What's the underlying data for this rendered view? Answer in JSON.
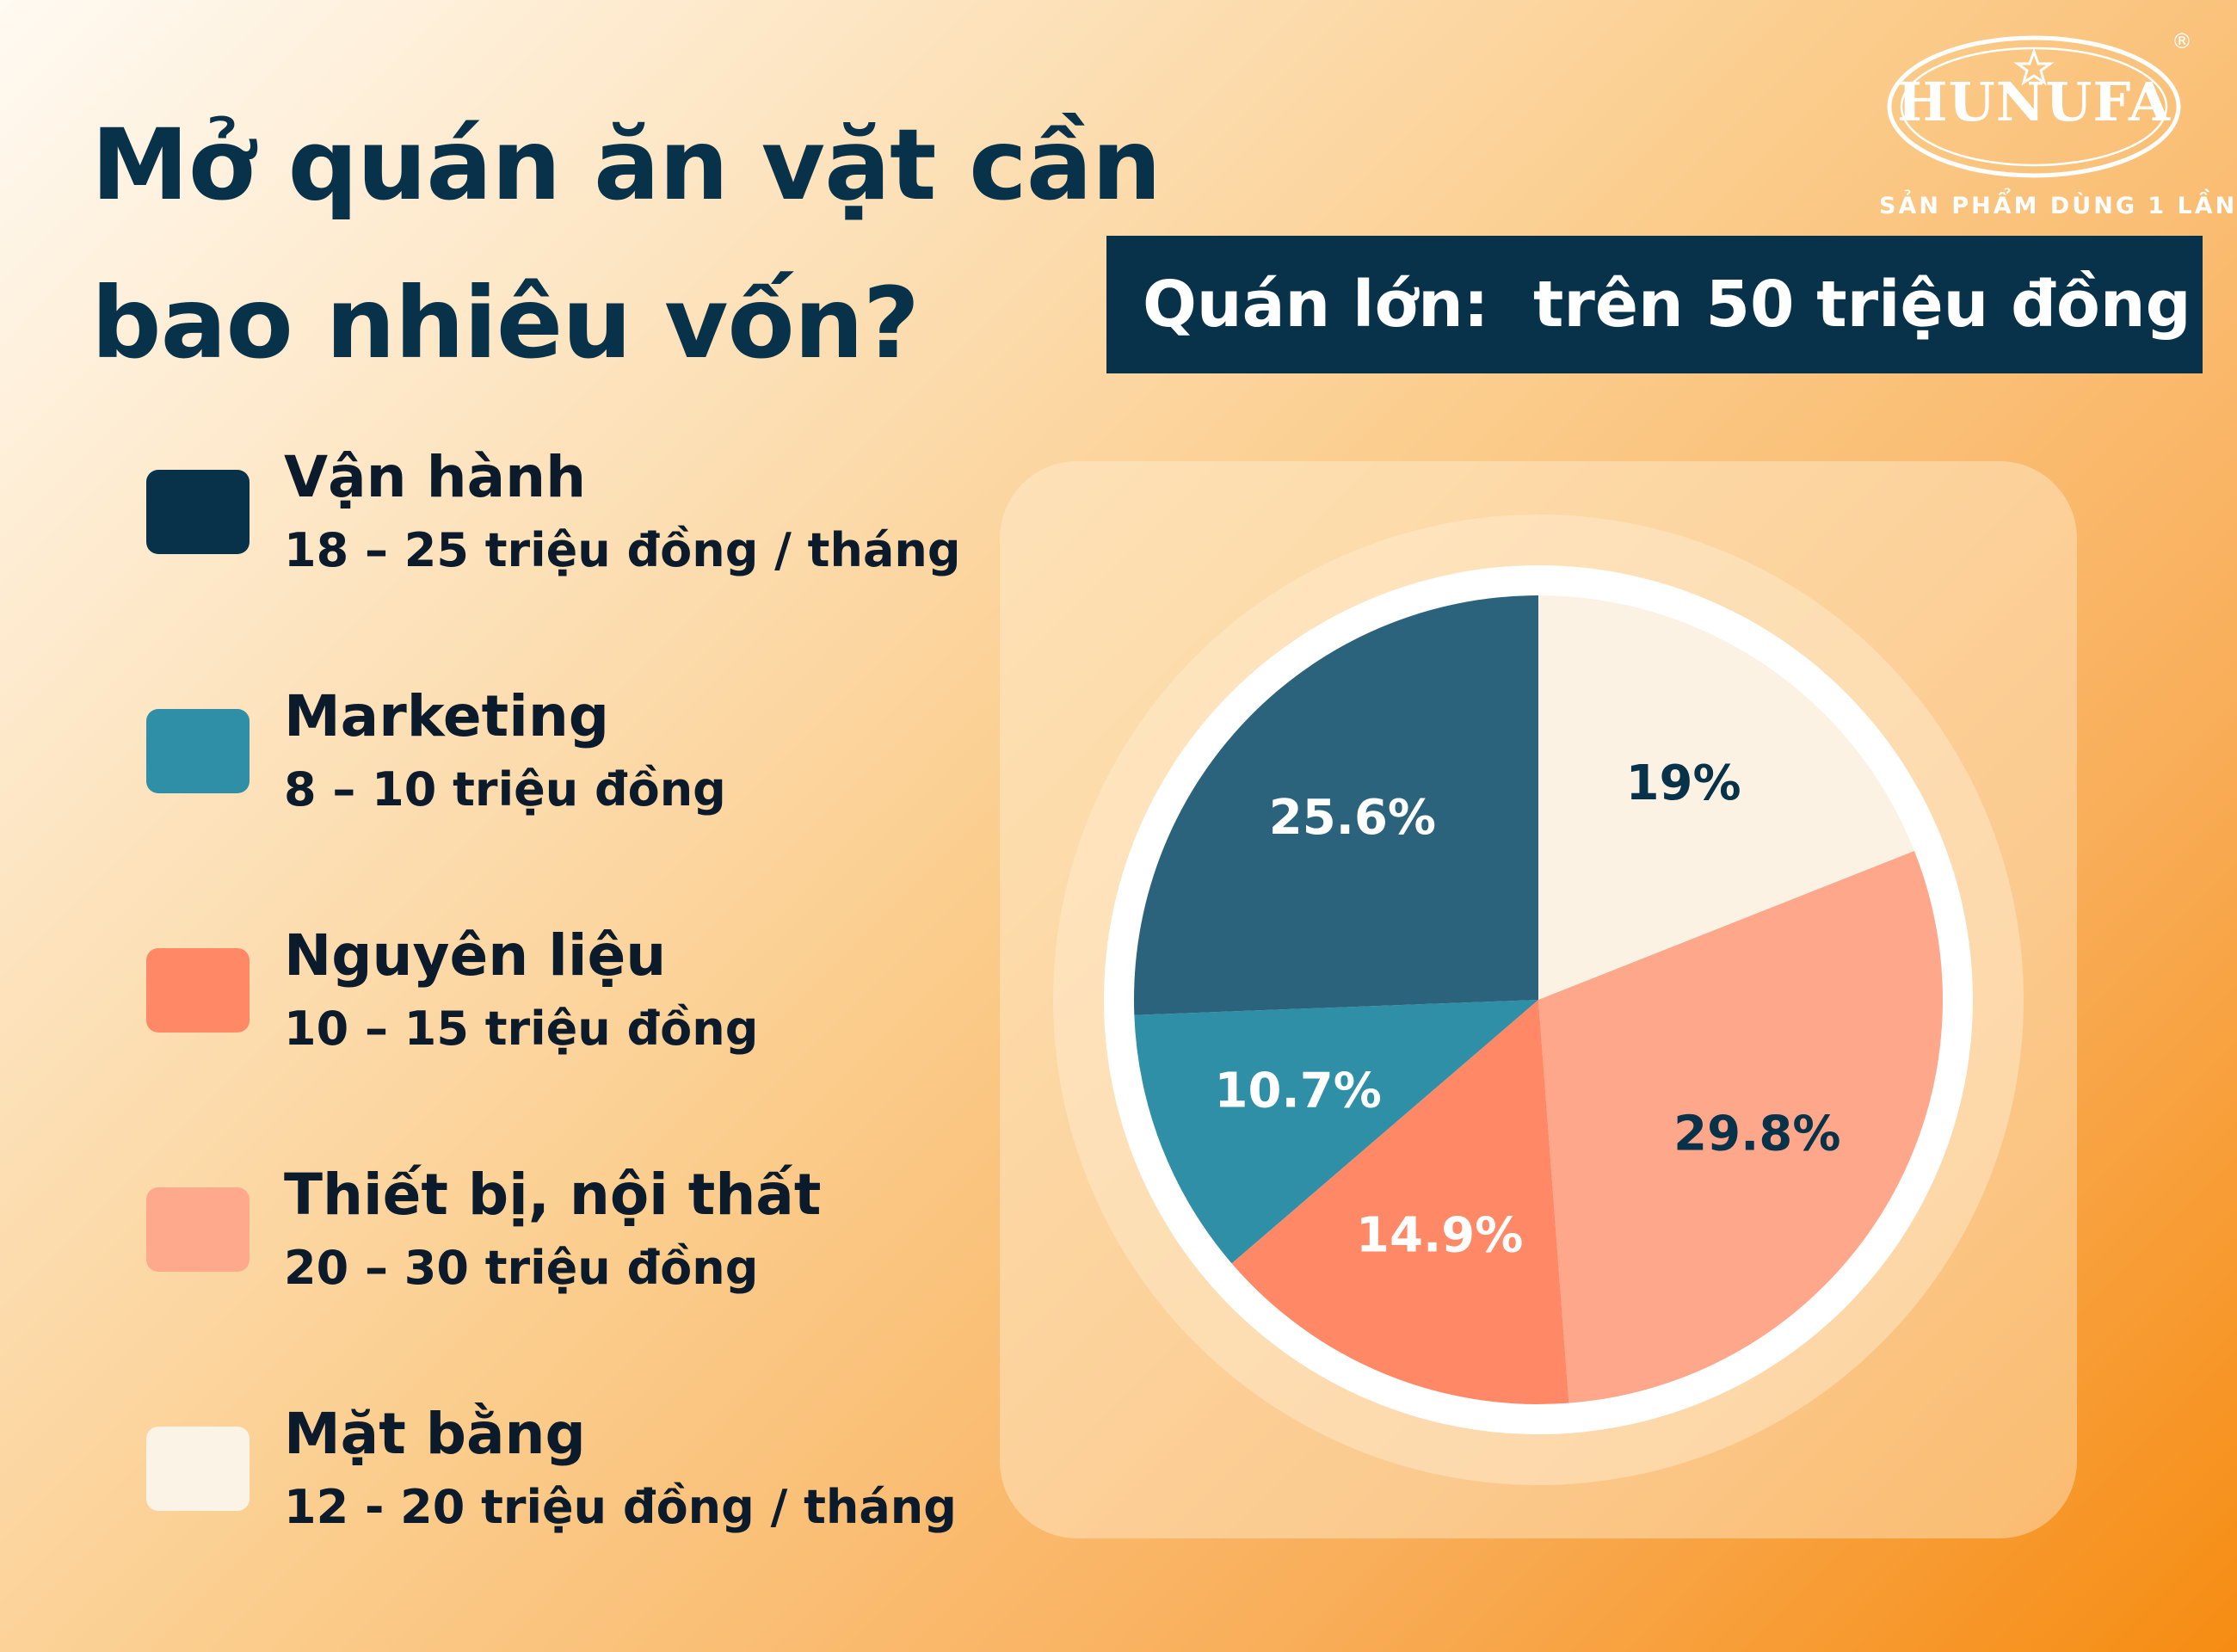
{
  "title": {
    "line1": "Mở quán ăn vặt cần",
    "line2": "bao nhiêu vốn?"
  },
  "banner": {
    "text": "Quán lớn:  trên 50 triệu đồng"
  },
  "brand": {
    "name": "HUNUFA",
    "tagline": "SẢN PHẨM DÙNG 1 LẦN",
    "registered": "®"
  },
  "legend": [
    {
      "label": "Vận hành",
      "value": "18 – 25 triệu đồng / tháng",
      "color": "#08324a"
    },
    {
      "label": "Marketing",
      "value": "8 – 10 triệu đồng",
      "color": "#2e8fa6"
    },
    {
      "label": "Nguyên liệu",
      "value": "10 – 15 triệu đồng",
      "color": "#ff8866"
    },
    {
      "label": "Thiết bị, nội thất",
      "value": "20 – 30 triệu đồng",
      "color": "#ffa98c"
    },
    {
      "label": "Mặt bằng",
      "value": "12 - 20 triệu đồng / tháng",
      "color": "#fbf4e6"
    }
  ],
  "chart_data": {
    "type": "pie",
    "slices": [
      {
        "category": "Mặt bằng",
        "value": 19,
        "label": "19%",
        "color": "#fbf2e3",
        "text_color": "#08324a"
      },
      {
        "category": "Thiết bị, nội thất",
        "value": 29.8,
        "label": "29.8%",
        "color": "#ffa78b",
        "text_color": "#08324a"
      },
      {
        "category": "Nguyên liệu",
        "value": 14.9,
        "label": "14.9%",
        "color": "#ff8866",
        "text_color": "#ffffff"
      },
      {
        "category": "Marketing",
        "value": 10.7,
        "label": "10.7%",
        "color": "#2e8fa6",
        "text_color": "#ffffff"
      },
      {
        "category": "Vận hành",
        "value": 25.6,
        "label": "25.6%",
        "color": "#2c637c",
        "text_color": "#ffffff"
      }
    ],
    "start": "12 o'clock",
    "direction": "clockwise"
  }
}
